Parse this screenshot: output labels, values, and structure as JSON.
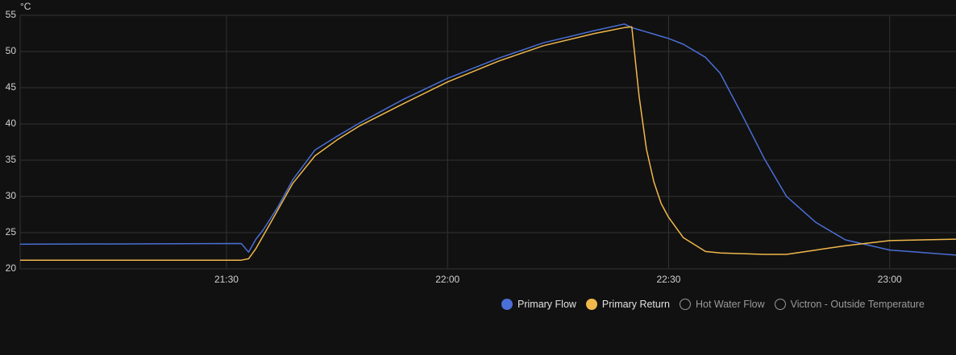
{
  "chart_data": {
    "type": "line",
    "y_label": "°C",
    "x": [
      "21:02",
      "21:32",
      "21:33",
      "21:34",
      "21:35",
      "21:37",
      "21:39",
      "21:42",
      "21:45",
      "21:48",
      "21:54",
      "22:00",
      "22:07",
      "22:13",
      "22:20",
      "22:24",
      "22:25",
      "22:26",
      "22:27",
      "22:28",
      "22:29",
      "22:30",
      "22:32",
      "22:35",
      "22:37",
      "22:40",
      "22:43",
      "22:46",
      "22:50",
      "22:54",
      "23:00",
      "23:09"
    ],
    "xlim": [
      "21:02",
      "23:09"
    ],
    "xticks": [
      "21:30",
      "22:00",
      "22:30",
      "23:00"
    ],
    "ylim": [
      20,
      55
    ],
    "yticks": [
      20,
      25,
      30,
      35,
      40,
      45,
      50,
      55
    ],
    "grid": true,
    "series": [
      {
        "name": "Primary Flow",
        "color": "#4a6fd6",
        "values": [
          23.4,
          23.5,
          22.3,
          24.1,
          25.4,
          28.6,
          32.3,
          36.4,
          38.3,
          40.1,
          43.4,
          46.3,
          49.1,
          51.2,
          52.9,
          53.8,
          53.3,
          53.0,
          52.7,
          52.4,
          52.1,
          51.8,
          51.0,
          49.2,
          47.0,
          41.2,
          35.2,
          30.0,
          26.4,
          24.0,
          22.6,
          21.9
        ]
      },
      {
        "name": "Primary Return",
        "color": "#f0b84c",
        "values": [
          21.2,
          21.2,
          21.4,
          22.8,
          24.6,
          28.2,
          31.8,
          35.6,
          37.8,
          39.7,
          42.8,
          45.8,
          48.7,
          50.8,
          52.5,
          53.3,
          53.4,
          43.8,
          36.5,
          32.0,
          29.0,
          27.1,
          24.3,
          22.4,
          22.2,
          22.1,
          22.0,
          22.0,
          22.6,
          23.2,
          23.9,
          24.1
        ]
      },
      {
        "name": "Hot Water Flow",
        "hidden": true
      },
      {
        "name": "Victron - Outside Temperature",
        "hidden": true
      }
    ]
  }
}
